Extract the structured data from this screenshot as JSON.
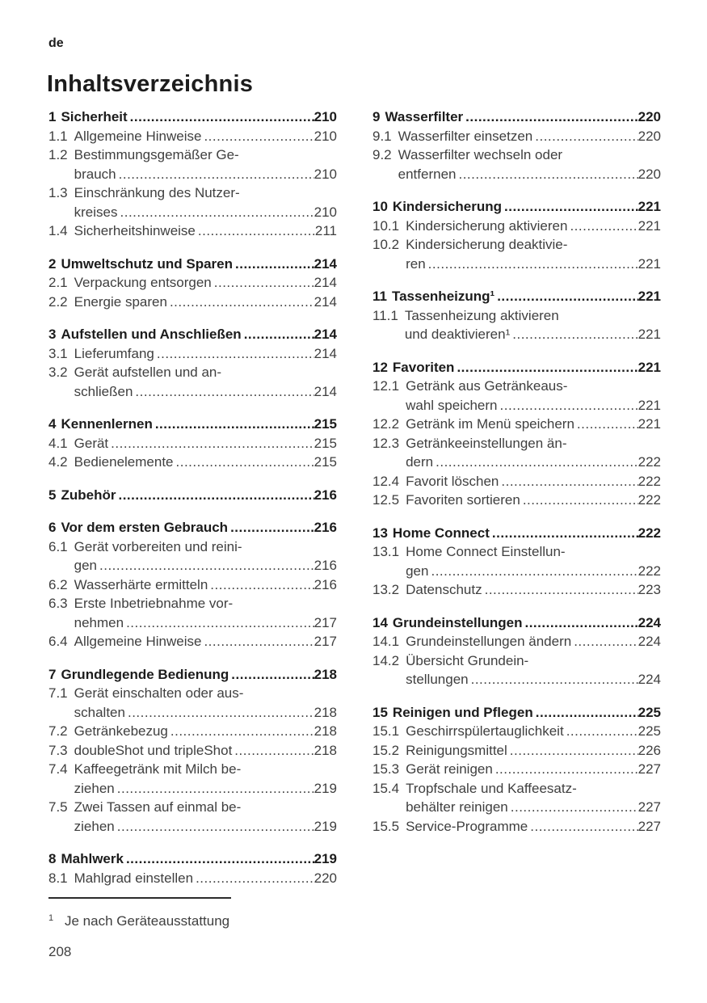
{
  "page": {
    "lang_tag": "de",
    "title": "Inhaltsverzeichnis",
    "page_number": "208",
    "footnote": {
      "marker": "1",
      "text": "Je nach Geräteausstattung"
    }
  },
  "toc": {
    "columns": [
      {
        "sections": [
          {
            "number": "1",
            "title": "Sicherheit",
            "page": "210",
            "entries": [
              {
                "number": "1.1",
                "lines": [
                  "Allgemeine Hinweise"
                ],
                "page": "210"
              },
              {
                "number": "1.2",
                "lines": [
                  "Bestimmungsgemäßer Ge-",
                  "brauch"
                ],
                "page": "210"
              },
              {
                "number": "1.3",
                "lines": [
                  "Einschränkung des Nutzer-",
                  "kreises"
                ],
                "page": "210"
              },
              {
                "number": "1.4",
                "lines": [
                  "Sicherheitshinweise"
                ],
                "page": "211"
              }
            ]
          },
          {
            "number": "2",
            "title": "Umweltschutz und Sparen",
            "page": "214",
            "entries": [
              {
                "number": "2.1",
                "lines": [
                  "Verpackung entsorgen"
                ],
                "page": "214"
              },
              {
                "number": "2.2",
                "lines": [
                  "Energie sparen"
                ],
                "page": "214"
              }
            ]
          },
          {
            "number": "3",
            "title": "Aufstellen und Anschließen",
            "page": "214",
            "entries": [
              {
                "number": "3.1",
                "lines": [
                  "Lieferumfang"
                ],
                "page": "214"
              },
              {
                "number": "3.2",
                "lines": [
                  "Gerät aufstellen und an-",
                  "schließen"
                ],
                "page": "214"
              }
            ]
          },
          {
            "number": "4",
            "title": "Kennenlernen",
            "page": "215",
            "entries": [
              {
                "number": "4.1",
                "lines": [
                  "Gerät"
                ],
                "page": "215"
              },
              {
                "number": "4.2",
                "lines": [
                  "Bedienelemente"
                ],
                "page": "215"
              }
            ]
          },
          {
            "number": "5",
            "title": "Zubehör",
            "page": "216",
            "entries": []
          },
          {
            "number": "6",
            "title": "Vor dem ersten Gebrauch",
            "page": "216",
            "entries": [
              {
                "number": "6.1",
                "lines": [
                  "Gerät vorbereiten und reini-",
                  "gen"
                ],
                "page": "216"
              },
              {
                "number": "6.2",
                "lines": [
                  "Wasserhärte ermitteln"
                ],
                "page": "216"
              },
              {
                "number": "6.3",
                "lines": [
                  "Erste Inbetriebnahme vor-",
                  "nehmen"
                ],
                "page": "217"
              },
              {
                "number": "6.4",
                "lines": [
                  "Allgemeine Hinweise"
                ],
                "page": "217"
              }
            ]
          },
          {
            "number": "7",
            "title": "Grundlegende Bedienung",
            "page": "218",
            "entries": [
              {
                "number": "7.1",
                "lines": [
                  "Gerät einschalten oder aus-",
                  "schalten"
                ],
                "page": "218"
              },
              {
                "number": "7.2",
                "lines": [
                  "Getränkebezug"
                ],
                "page": "218"
              },
              {
                "number": "7.3",
                "lines": [
                  "doubleShot und tripleShot"
                ],
                "page": "218"
              },
              {
                "number": "7.4",
                "lines": [
                  "Kaffeegetränk mit Milch be-",
                  "ziehen"
                ],
                "page": "219"
              },
              {
                "number": "7.5",
                "lines": [
                  "Zwei Tassen auf einmal be-",
                  "ziehen"
                ],
                "page": "219"
              }
            ]
          },
          {
            "number": "8",
            "title": "Mahlwerk",
            "page": "219",
            "entries": [
              {
                "number": "8.1",
                "lines": [
                  "Mahlgrad einstellen"
                ],
                "page": "220"
              }
            ]
          }
        ]
      },
      {
        "sections": [
          {
            "number": "9",
            "title": "Wasserfilter",
            "page": "220",
            "entries": [
              {
                "number": "9.1",
                "lines": [
                  "Wasserfilter einsetzen"
                ],
                "page": "220"
              },
              {
                "number": "9.2",
                "lines": [
                  "Wasserfilter wechseln oder",
                  "entfernen"
                ],
                "page": "220"
              }
            ]
          },
          {
            "number": "10",
            "title": "Kindersicherung",
            "page": "221",
            "entries": [
              {
                "number": "10.1",
                "lines": [
                  "Kindersicherung aktivieren"
                ],
                "page": "221"
              },
              {
                "number": "10.2",
                "lines": [
                  "Kindersicherung deaktivie-",
                  "ren"
                ],
                "page": "221"
              }
            ]
          },
          {
            "number": "11",
            "title": "Tassenheizung¹",
            "page": "221",
            "entries": [
              {
                "number": "11.1",
                "lines": [
                  "Tassenheizung aktivieren",
                  "und deaktivieren¹"
                ],
                "page": "221"
              }
            ]
          },
          {
            "number": "12",
            "title": "Favoriten",
            "page": "221",
            "entries": [
              {
                "number": "12.1",
                "lines": [
                  "Getränk aus Getränkeaus-",
                  "wahl speichern"
                ],
                "page": "221"
              },
              {
                "number": "12.2",
                "lines": [
                  "Getränk im Menü speichern"
                ],
                "page": "221"
              },
              {
                "number": "12.3",
                "lines": [
                  "Getränkeeinstellungen än-",
                  "dern"
                ],
                "page": "222"
              },
              {
                "number": "12.4",
                "lines": [
                  "Favorit löschen"
                ],
                "page": "222"
              },
              {
                "number": "12.5",
                "lines": [
                  "Favoriten sortieren"
                ],
                "page": "222"
              }
            ]
          },
          {
            "number": "13",
            "title": "Home Connect",
            "page": "222",
            "entries": [
              {
                "number": "13.1",
                "lines": [
                  "Home Connect Einstellun-",
                  "gen"
                ],
                "page": "222"
              },
              {
                "number": "13.2",
                "lines": [
                  "Datenschutz"
                ],
                "page": "223"
              }
            ]
          },
          {
            "number": "14",
            "title": "Grundeinstellungen",
            "page": "224",
            "entries": [
              {
                "number": "14.1",
                "lines": [
                  "Grundeinstellungen ändern"
                ],
                "page": "224"
              },
              {
                "number": "14.2",
                "lines": [
                  "Übersicht Grundein-",
                  "stellungen"
                ],
                "page": "224"
              }
            ]
          },
          {
            "number": "15",
            "title": "Reinigen und Pflegen",
            "page": "225",
            "entries": [
              {
                "number": "15.1",
                "lines": [
                  "Geschirrspülertauglichkeit"
                ],
                "page": "225"
              },
              {
                "number": "15.2",
                "lines": [
                  "Reinigungsmittel"
                ],
                "page": "226"
              },
              {
                "number": "15.3",
                "lines": [
                  "Gerät reinigen"
                ],
                "page": "227"
              },
              {
                "number": "15.4",
                "lines": [
                  "Tropfschale und Kaffeesatz-",
                  "behälter reinigen"
                ],
                "page": "227"
              },
              {
                "number": "15.5",
                "lines": [
                  "Service-Programme"
                ],
                "page": "227"
              }
            ]
          }
        ]
      }
    ]
  }
}
